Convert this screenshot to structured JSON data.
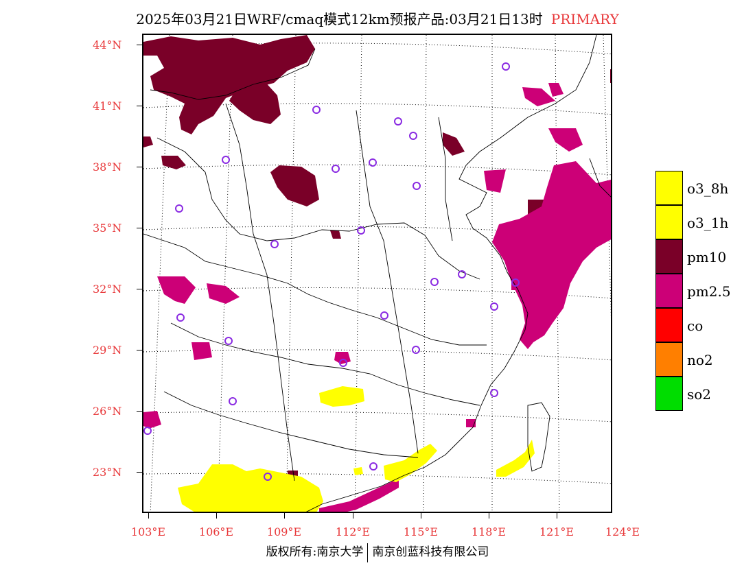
{
  "title": {
    "main": "2025年03月21日WRF/cmaq模式12km预报产品:03月21日13时",
    "highlight": "PRIMARY"
  },
  "axes": {
    "lat_labels": [
      "44°N",
      "41°N",
      "38°N",
      "35°N",
      "32°N",
      "29°N",
      "26°N",
      "23°N"
    ],
    "lon_labels": [
      "103°E",
      "106°E",
      "109°E",
      "112°E",
      "115°E",
      "118°E",
      "121°E",
      "124°E"
    ]
  },
  "legend": [
    {
      "label": "o3_8h",
      "color": "#ffff00"
    },
    {
      "label": "o3_1h",
      "color": "#ffff00"
    },
    {
      "label": "pm10",
      "color": "#7a0028"
    },
    {
      "label": "pm2.5",
      "color": "#cc0077"
    },
    {
      "label": "co",
      "color": "#ff0000"
    },
    {
      "label": "no2",
      "color": "#ff7f00"
    },
    {
      "label": "so2",
      "color": "#00dd00"
    }
  ],
  "colors": {
    "accent_text": "#e8383a",
    "station_marker": "#8a2be2",
    "pm10": "#7a0028",
    "pm25": "#cc0077",
    "o3": "#ffff00"
  },
  "footer": {
    "left": "版权所有:南京大学",
    "right": "南京创蓝科技有限公司"
  }
}
